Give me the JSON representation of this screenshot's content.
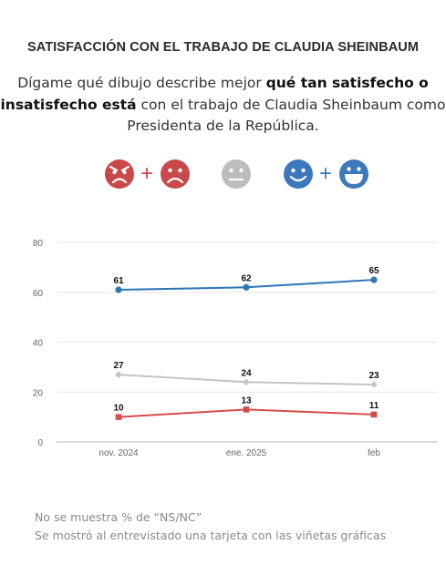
{
  "header": {
    "title": "SATISFACCIÓN CON EL TRABAJO DE CLAUDIA SHEINBAUM",
    "question_line1_pre": "Dígame qué dibujo describe mejor ",
    "question_line1_bold": "qué tan satisfecho o",
    "question_line2_bold": "insatisfecho está",
    "question_line2_post": " con el trabajo de Claudia Sheinbaum como",
    "question_line3": "Presidenta de la República."
  },
  "legend_faces": {
    "dissatisfied": {
      "icons": [
        "angry-face-icon",
        "frown-face-icon"
      ],
      "plus": "+",
      "color": "#c9484a"
    },
    "neutral": {
      "icons": [
        "neutral-face-icon"
      ],
      "color": "#bcbcbc"
    },
    "satisfied": {
      "icons": [
        "smile-face-icon",
        "grin-face-icon"
      ],
      "plus": "+",
      "color": "#3d78bd"
    }
  },
  "chart_data": {
    "type": "line",
    "categories": [
      "nov. 2024",
      "ene. 2025",
      "feb"
    ],
    "ylim": [
      0,
      80
    ],
    "yticks": [
      0,
      20,
      40,
      60,
      80
    ],
    "grid": true,
    "series": [
      {
        "key": "satisfied",
        "values": [
          61,
          62,
          65
        ],
        "color": "#2f74b5",
        "marker": "circle"
      },
      {
        "key": "neutral",
        "values": [
          27,
          24,
          23
        ],
        "color": "#c4c4c4",
        "marker": "diamond"
      },
      {
        "key": "dissatisfied",
        "values": [
          10,
          13,
          11
        ],
        "color": "#d44d4d",
        "marker": "square"
      }
    ]
  },
  "notes": [
    "No se muestra % de “NS/NC”",
    "Se mostró al entrevistado una tarjeta con las viñetas gráficas"
  ]
}
